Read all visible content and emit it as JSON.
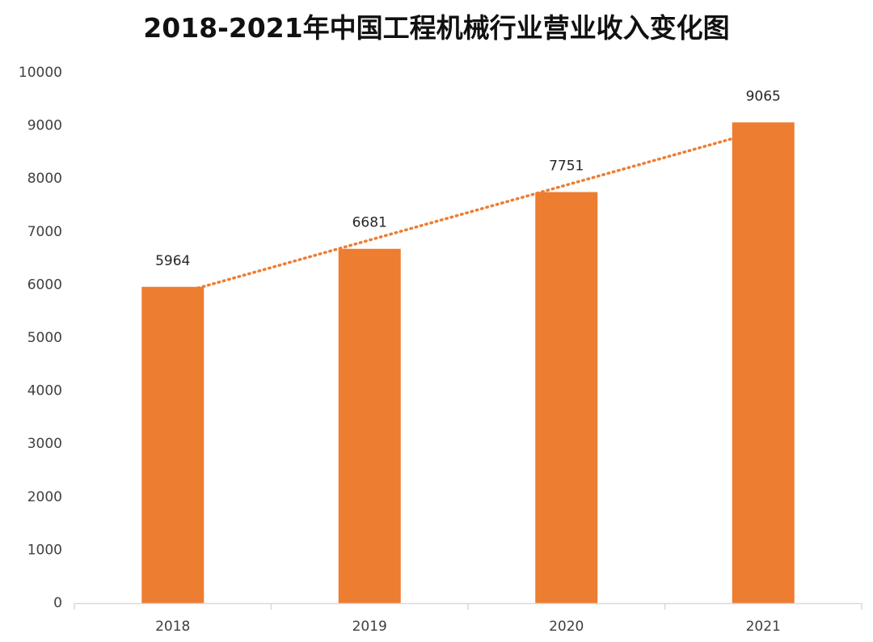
{
  "chart_data": {
    "type": "bar",
    "title": "2018-2021年中国工程机械行业营业收入变化图",
    "categories": [
      "2018",
      "2019",
      "2020",
      "2021"
    ],
    "values": [
      5964,
      6681,
      7751,
      9065
    ],
    "data_labels": [
      "5964",
      "6681",
      "7751",
      "9065"
    ],
    "y_ticks": [
      "0",
      "1000",
      "2000",
      "3000",
      "4000",
      "5000",
      "6000",
      "7000",
      "8000",
      "9000",
      "10000"
    ],
    "ylim": [
      0,
      10000
    ],
    "xlabel": "",
    "ylabel": "",
    "grid": false,
    "legend": "none",
    "trendline": "linear, dotted",
    "colors": {
      "bar": "#ED7D31",
      "trendline": "#ED7D31",
      "axis": "#D9D9D9"
    }
  }
}
